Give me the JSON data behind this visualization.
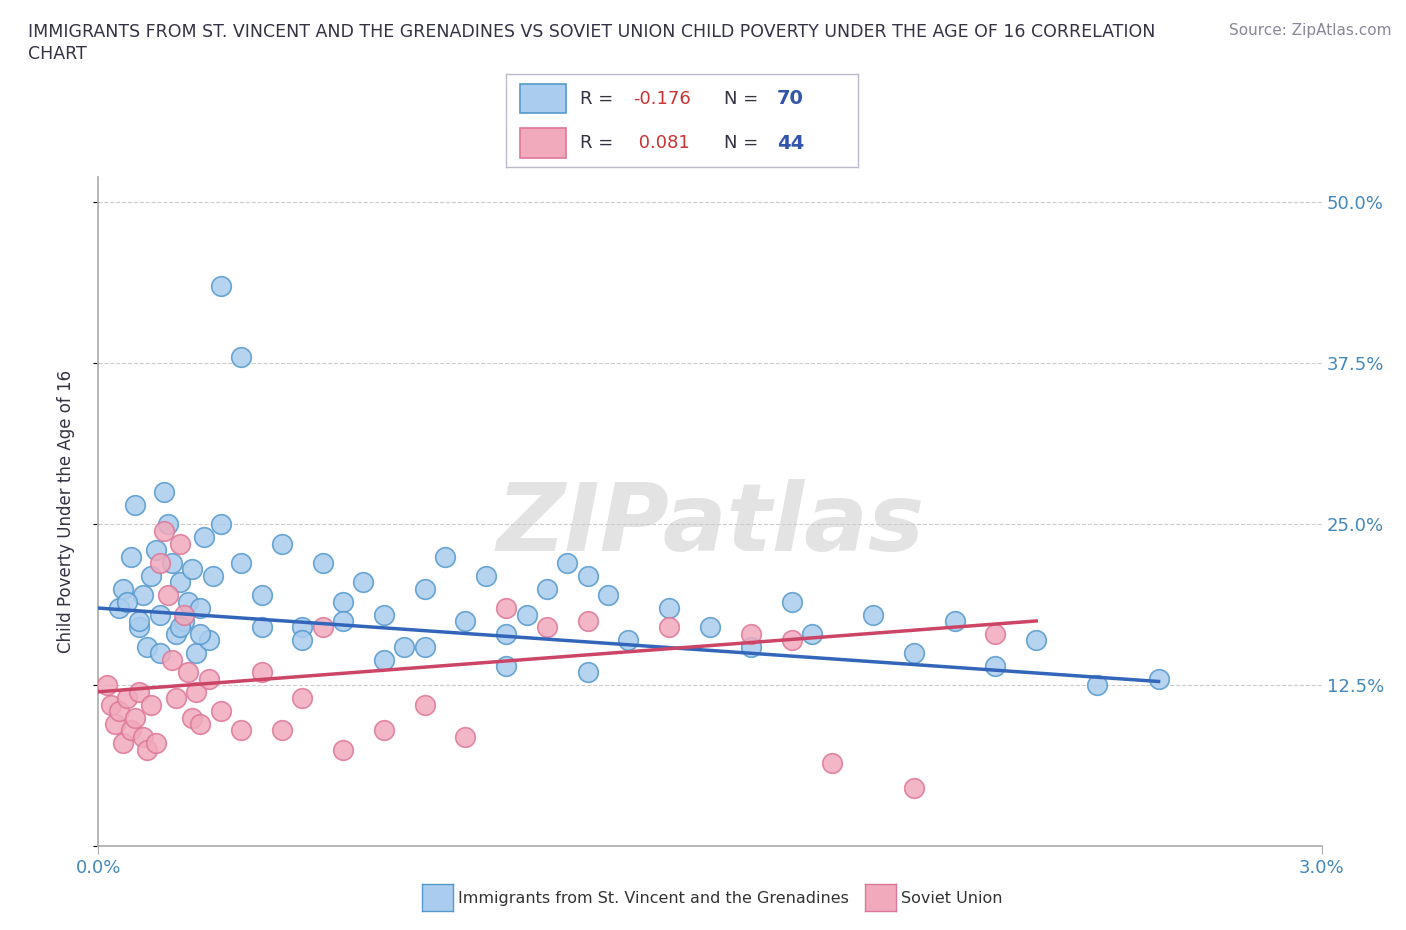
{
  "title_line1": "IMMIGRANTS FROM ST. VINCENT AND THE GRENADINES VS SOVIET UNION CHILD POVERTY UNDER THE AGE OF 16 CORRELATION",
  "title_line2": "CHART",
  "source_text": "Source: ZipAtlas.com",
  "ylabel": "Child Poverty Under the Age of 16",
  "xlim": [
    0.0,
    3.0
  ],
  "ylim": [
    0.0,
    52.0
  ],
  "ytick_values": [
    0,
    12.5,
    25.0,
    37.5,
    50.0
  ],
  "ytick_right_labels": [
    "",
    "12.5%",
    "25.0%",
    "37.5%",
    "50.0%"
  ],
  "blue_color": "#aaccee",
  "blue_edge": "#5599cc",
  "pink_color": "#f0aabc",
  "pink_edge": "#dd7799",
  "trend_blue_color": "#3366bb",
  "trend_pink_color": "#cc4466",
  "grid_color": "#cccccc",
  "watermark": "ZIPatlas",
  "legend_text_color": "#333344",
  "legend_r_color": "#333344",
  "legend_n_color": "#3355aa",
  "bottom_legend_color": "#333333",
  "title_color": "#333344",
  "source_color": "#888899",
  "axis_label_color": "#4488bb",
  "blue_points_x": [
    0.05,
    0.06,
    0.08,
    0.09,
    0.1,
    0.11,
    0.12,
    0.13,
    0.14,
    0.15,
    0.16,
    0.17,
    0.18,
    0.19,
    0.2,
    0.21,
    0.22,
    0.23,
    0.24,
    0.25,
    0.26,
    0.27,
    0.28,
    0.3,
    0.35,
    0.4,
    0.45,
    0.5,
    0.55,
    0.6,
    0.65,
    0.7,
    0.75,
    0.8,
    0.85,
    0.9,
    0.95,
    1.0,
    1.05,
    1.1,
    1.15,
    1.2,
    1.25,
    1.3,
    1.4,
    1.5,
    1.6,
    1.7,
    1.75,
    1.9,
    2.0,
    2.1,
    2.2,
    2.3,
    2.45,
    0.07,
    0.1,
    0.15,
    0.2,
    0.25,
    0.3,
    0.35,
    0.4,
    0.5,
    0.6,
    0.7,
    0.8,
    1.0,
    1.2,
    2.6
  ],
  "blue_points_y": [
    18.5,
    20.0,
    22.5,
    26.5,
    17.0,
    19.5,
    15.5,
    21.0,
    23.0,
    18.0,
    27.5,
    25.0,
    22.0,
    16.5,
    20.5,
    17.5,
    19.0,
    21.5,
    15.0,
    18.5,
    24.0,
    16.0,
    21.0,
    25.0,
    22.0,
    19.5,
    23.5,
    17.0,
    22.0,
    19.0,
    20.5,
    18.0,
    15.5,
    20.0,
    22.5,
    17.5,
    21.0,
    16.5,
    18.0,
    20.0,
    22.0,
    21.0,
    19.5,
    16.0,
    18.5,
    17.0,
    15.5,
    19.0,
    16.5,
    18.0,
    15.0,
    17.5,
    14.0,
    16.0,
    12.5,
    19.0,
    17.5,
    15.0,
    17.0,
    16.5,
    43.5,
    38.0,
    17.0,
    16.0,
    17.5,
    14.5,
    15.5,
    14.0,
    13.5,
    13.0
  ],
  "pink_points_x": [
    0.02,
    0.03,
    0.04,
    0.05,
    0.06,
    0.07,
    0.08,
    0.09,
    0.1,
    0.11,
    0.12,
    0.13,
    0.14,
    0.15,
    0.16,
    0.17,
    0.18,
    0.19,
    0.2,
    0.21,
    0.22,
    0.23,
    0.24,
    0.25,
    0.27,
    0.3,
    0.35,
    0.4,
    0.5,
    0.6,
    0.7,
    0.8,
    0.9,
    1.0,
    1.1,
    1.2,
    1.4,
    1.6,
    1.7,
    1.8,
    2.0,
    2.2,
    0.45,
    0.55
  ],
  "pink_points_y": [
    12.5,
    11.0,
    9.5,
    10.5,
    8.0,
    11.5,
    9.0,
    10.0,
    12.0,
    8.5,
    7.5,
    11.0,
    8.0,
    22.0,
    24.5,
    19.5,
    14.5,
    11.5,
    23.5,
    18.0,
    13.5,
    10.0,
    12.0,
    9.5,
    13.0,
    10.5,
    9.0,
    13.5,
    11.5,
    7.5,
    9.0,
    11.0,
    8.5,
    18.5,
    17.0,
    17.5,
    17.0,
    16.5,
    16.0,
    6.5,
    4.5,
    16.5,
    9.0,
    17.0
  ]
}
